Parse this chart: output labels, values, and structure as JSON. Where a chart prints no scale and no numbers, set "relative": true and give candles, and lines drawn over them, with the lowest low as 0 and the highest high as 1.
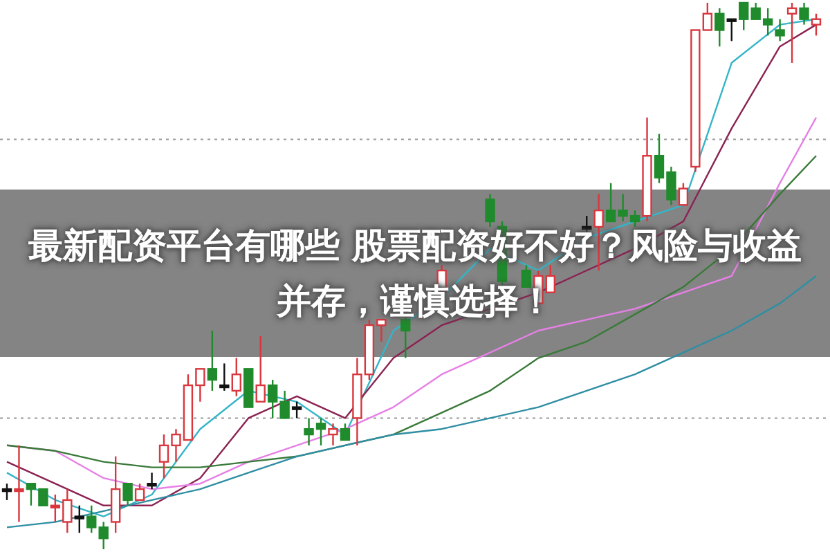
{
  "chart_data": {
    "type": "candlestick",
    "relative": true,
    "title": "最新配资平台有哪些 股票配资好不好？风险与收益并存，谨慎选择！",
    "categories": [
      null,
      null,
      null,
      null,
      null,
      null,
      null,
      null,
      null,
      null,
      null,
      null,
      null,
      null,
      null,
      null,
      null,
      null,
      null,
      null,
      null,
      null,
      null,
      null,
      null,
      null,
      null,
      null,
      null,
      null,
      null,
      null,
      null,
      null,
      null,
      null,
      null,
      null,
      null,
      null,
      null,
      null,
      null,
      null,
      null,
      null,
      null,
      null,
      null,
      null,
      null,
      null,
      null,
      null,
      null,
      null,
      null,
      null,
      null,
      null,
      null,
      null,
      null,
      null,
      null,
      null,
      null,
      null
    ],
    "ohlc": [
      [
        0.11,
        0.12,
        0.09,
        0.11
      ],
      [
        0.11,
        0.19,
        0.05,
        0.11
      ],
      [
        0.12,
        0.12,
        0.08,
        0.11
      ],
      [
        0.11,
        0.11,
        0.08,
        0.08
      ],
      [
        0.08,
        0.1,
        0.05,
        0.08
      ],
      [
        0.05,
        0.11,
        0.03,
        0.09
      ],
      [
        0.06,
        0.08,
        0.03,
        0.06
      ],
      [
        0.06,
        0.08,
        0.03,
        0.04
      ],
      [
        0.04,
        0.05,
        0.0,
        0.02
      ],
      [
        0.05,
        0.17,
        0.03,
        0.11
      ],
      [
        0.12,
        0.12,
        0.08,
        0.09
      ],
      [
        0.09,
        0.12,
        0.09,
        0.11
      ],
      [
        0.12,
        0.14,
        0.11,
        0.12
      ],
      [
        0.16,
        0.21,
        0.13,
        0.19
      ],
      [
        0.19,
        0.22,
        0.16,
        0.21
      ],
      [
        0.2,
        0.32,
        0.2,
        0.3
      ],
      [
        0.3,
        0.33,
        0.27,
        0.33
      ],
      [
        0.33,
        0.4,
        0.29,
        0.31
      ],
      [
        0.3,
        0.34,
        0.29,
        0.3
      ],
      [
        0.29,
        0.35,
        0.28,
        0.32
      ],
      [
        0.33,
        0.33,
        0.26,
        0.26
      ],
      [
        0.27,
        0.39,
        0.27,
        0.3
      ],
      [
        0.3,
        0.31,
        0.24,
        0.27
      ],
      [
        0.27,
        0.29,
        0.24,
        0.24
      ],
      [
        0.26,
        0.27,
        0.24,
        0.26
      ],
      [
        0.22,
        0.24,
        0.19,
        0.21
      ],
      [
        0.23,
        0.24,
        0.19,
        0.22
      ],
      [
        0.21,
        0.23,
        0.19,
        0.22
      ],
      [
        0.22,
        0.23,
        0.2,
        0.2
      ],
      [
        0.24,
        0.35,
        0.19,
        0.32
      ],
      [
        0.32,
        0.42,
        0.31,
        0.41
      ],
      [
        0.41,
        0.42,
        0.38,
        0.42
      ],
      null,
      [
        0.42,
        0.43,
        0.35,
        0.4
      ],
      null,
      null,
      [
        0.47,
        0.52,
        0.47,
        0.51
      ],
      null,
      null,
      null,
      [
        0.64,
        0.65,
        0.59,
        0.6
      ],
      [
        0.59,
        0.6,
        0.48,
        0.49
      ],
      null,
      [
        0.51,
        0.52,
        0.48,
        0.48
      ],
      [
        0.45,
        0.51,
        0.45,
        0.5
      ],
      [
        0.47,
        0.52,
        0.47,
        0.5
      ],
      null,
      null,
      [
        0.59,
        0.61,
        0.58,
        0.59
      ],
      [
        0.59,
        0.65,
        0.51,
        0.62
      ],
      [
        0.62,
        0.67,
        0.6,
        0.6
      ],
      [
        0.62,
        0.65,
        0.6,
        0.61
      ],
      [
        0.61,
        0.62,
        0.59,
        0.6
      ],
      [
        0.61,
        0.79,
        0.6,
        0.72
      ],
      [
        0.72,
        0.76,
        0.67,
        0.68
      ],
      [
        0.69,
        0.7,
        0.63,
        0.64
      ],
      [
        0.63,
        0.67,
        0.63,
        0.66
      ],
      [
        0.7,
        0.95,
        0.69,
        0.95
      ],
      [
        0.95,
        1.0,
        0.95,
        0.98
      ],
      [
        0.98,
        0.99,
        0.92,
        0.95
      ],
      [
        0.97,
        0.97,
        0.93,
        0.97
      ],
      [
        1.0,
        1.0,
        0.95,
        0.97
      ],
      [
        0.99,
        1.0,
        0.97,
        0.97
      ],
      [
        0.97,
        0.99,
        0.94,
        0.96
      ],
      [
        0.95,
        0.97,
        0.93,
        0.94
      ],
      [
        0.98,
        1.0,
        0.89,
        0.99
      ],
      [
        0.99,
        1.0,
        0.96,
        0.97
      ],
      [
        0.96,
        0.98,
        0.94,
        0.97
      ]
    ],
    "colors": [
      "#111111",
      "#d9363e",
      "#1f8b2c",
      "#1f8b2c",
      "#d9363e",
      "#d9363e",
      "#111111",
      "#1f8b2c",
      "#1f8b2c",
      "#d9363e",
      "#1f8b2c",
      "#d9363e",
      "#111111",
      "#d9363e",
      "#d9363e",
      "#d9363e",
      "#d9363e",
      "#1f8b2c",
      "#111111",
      "#d9363e",
      "#1f8b2c",
      "#d9363e",
      "#1f8b2c",
      "#1f8b2c",
      "#111111",
      "#1f8b2c",
      "#1f8b2c",
      "#d9363e",
      "#1f8b2c",
      "#d9363e",
      "#d9363e",
      "#d9363e",
      null,
      "#1f8b2c",
      null,
      null,
      "#d9363e",
      null,
      null,
      null,
      "#1f8b2c",
      "#1f8b2c",
      null,
      "#1f8b2c",
      "#d9363e",
      "#d9363e",
      null,
      null,
      "#111111",
      "#d9363e",
      "#1f8b2c",
      "#1f8b2c",
      "#1f8b2c",
      "#d9363e",
      "#1f8b2c",
      "#1f8b2c",
      "#d9363e",
      "#d9363e",
      "#d9363e",
      "#1f8b2c",
      "#111111",
      "#1f8b2c",
      "#1f8b2c",
      "#1f8b2c",
      "#1f8b2c",
      "#d9363e",
      "#1f8b2c",
      "#d9363e"
    ],
    "series": [
      {
        "type": "line",
        "color": "#35b5c8",
        "values": [
          0.14,
          null,
          null,
          null,
          0.09,
          null,
          null,
          null,
          0.06,
          null,
          null,
          null,
          0.1,
          null,
          null,
          null,
          0.22,
          null,
          null,
          null,
          0.29,
          null,
          null,
          null,
          0.27,
          null,
          null,
          null,
          0.21,
          null,
          null,
          null,
          0.4,
          null,
          null,
          null,
          0.46,
          null,
          null,
          null,
          0.55,
          null,
          null,
          null,
          0.51,
          null,
          null,
          null,
          0.57,
          null,
          null,
          null,
          0.6,
          null,
          null,
          null,
          0.63,
          null,
          null,
          null,
          0.89,
          null,
          null,
          null,
          0.96,
          null,
          null,
          0.97
        ]
      },
      {
        "type": "line",
        "color": "#8b2252",
        "values": [
          0.16,
          null,
          null,
          null,
          0.12,
          null,
          null,
          null,
          0.08,
          null,
          null,
          null,
          0.08,
          null,
          null,
          null,
          0.13,
          null,
          null,
          null,
          0.24,
          null,
          null,
          null,
          0.28,
          null,
          null,
          null,
          0.24,
          null,
          null,
          null,
          0.35,
          null,
          null,
          null,
          0.41,
          null,
          null,
          null,
          0.44,
          null,
          null,
          null,
          0.47,
          null,
          null,
          null,
          0.51,
          null,
          null,
          null,
          0.55,
          null,
          null,
          null,
          0.6,
          null,
          null,
          null,
          0.77,
          null,
          null,
          null,
          0.92,
          null,
          null,
          0.96
        ]
      },
      {
        "type": "line",
        "color": "#e680e6",
        "values": [
          0.19,
          null,
          null,
          null,
          0.18,
          null,
          null,
          null,
          0.13,
          null,
          null,
          null,
          0.11,
          null,
          null,
          null,
          0.12,
          null,
          null,
          null,
          0.16,
          null,
          null,
          null,
          0.19,
          null,
          null,
          null,
          0.22,
          null,
          null,
          null,
          0.26,
          null,
          null,
          null,
          0.32,
          null,
          null,
          null,
          0.36,
          null,
          null,
          null,
          0.4,
          null,
          null,
          null,
          0.42,
          null,
          null,
          null,
          0.44,
          null,
          null,
          null,
          0.47,
          null,
          null,
          null,
          0.5,
          null,
          null,
          null,
          0.67,
          null,
          null,
          0.79
        ]
      },
      {
        "type": "line",
        "color": "#3a7a3a",
        "values": [
          0.19,
          null,
          null,
          null,
          0.18,
          null,
          null,
          null,
          0.16,
          null,
          null,
          null,
          0.15,
          null,
          null,
          null,
          0.15,
          null,
          null,
          null,
          0.16,
          null,
          null,
          null,
          0.17,
          null,
          null,
          null,
          0.19,
          null,
          null,
          null,
          0.21,
          null,
          null,
          null,
          0.25,
          null,
          null,
          null,
          0.29,
          null,
          null,
          null,
          0.35,
          null,
          null,
          null,
          0.38,
          null,
          null,
          null,
          0.43,
          null,
          null,
          null,
          0.48,
          null,
          null,
          null,
          0.55,
          null,
          null,
          null,
          0.65,
          null,
          null,
          0.72
        ]
      },
      {
        "type": "line",
        "color": "#2f8ea3",
        "values": [
          0.04,
          null,
          null,
          null,
          0.05,
          null,
          null,
          null,
          0.07,
          null,
          null,
          null,
          0.09,
          null,
          null,
          null,
          0.11,
          null,
          null,
          null,
          0.14,
          null,
          null,
          null,
          0.17,
          null,
          null,
          null,
          0.19,
          null,
          null,
          null,
          0.21,
          null,
          null,
          null,
          0.22,
          null,
          null,
          null,
          0.24,
          null,
          null,
          null,
          0.26,
          null,
          null,
          null,
          0.29,
          null,
          null,
          null,
          0.32,
          null,
          null,
          null,
          0.36,
          null,
          null,
          null,
          0.4,
          null,
          null,
          null,
          0.45,
          null,
          null,
          0.5
        ]
      }
    ],
    "ref_lines": [
      {
        "axis": "y",
        "value": 0.75,
        "color": "#999999",
        "line_style": "dotted"
      },
      {
        "axis": "y",
        "value": 0.24,
        "color": "#999999",
        "line_style": "dotted"
      }
    ]
  }
}
